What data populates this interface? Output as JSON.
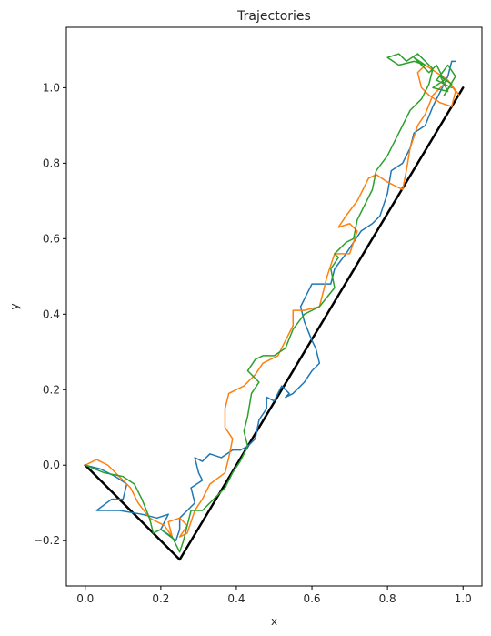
{
  "chart_data": {
    "type": "line",
    "title": "Trajectories",
    "xlabel": "x",
    "ylabel": "y",
    "xlim": [
      -0.05,
      1.05
    ],
    "ylim": [
      -0.32,
      1.16
    ],
    "xticks": [
      0.0,
      0.2,
      0.4,
      0.6,
      0.8,
      1.0
    ],
    "yticks": [
      -0.2,
      0.0,
      0.2,
      0.4,
      0.6,
      0.8,
      1.0
    ],
    "xtick_labels": [
      "0.0",
      "0.2",
      "0.4",
      "0.6",
      "0.8",
      "1.0"
    ],
    "ytick_labels": [
      "−0.2",
      "0.0",
      "0.2",
      "0.4",
      "0.6",
      "0.8",
      "1.0"
    ],
    "grid": false,
    "series": [
      {
        "color": "#000000",
        "width": 2.5,
        "points": [
          [
            0.0,
            0.0
          ],
          [
            0.25,
            -0.25
          ],
          [
            1.0,
            1.0
          ]
        ]
      },
      {
        "color": "#1f77b4",
        "width": 1.5,
        "points": [
          [
            0.0,
            0.0
          ],
          [
            0.04,
            -0.01
          ],
          [
            0.08,
            -0.03
          ],
          [
            0.11,
            -0.05
          ],
          [
            0.1,
            -0.09
          ],
          [
            0.07,
            -0.09
          ],
          [
            0.03,
            -0.12
          ],
          [
            0.09,
            -0.12
          ],
          [
            0.15,
            -0.13
          ],
          [
            0.19,
            -0.14
          ],
          [
            0.22,
            -0.13
          ],
          [
            0.2,
            -0.17
          ],
          [
            0.24,
            -0.2
          ],
          [
            0.25,
            -0.17
          ],
          [
            0.25,
            -0.14
          ],
          [
            0.28,
            -0.11
          ],
          [
            0.29,
            -0.1
          ],
          [
            0.28,
            -0.06
          ],
          [
            0.31,
            -0.04
          ],
          [
            0.3,
            -0.02
          ],
          [
            0.29,
            0.02
          ],
          [
            0.31,
            0.01
          ],
          [
            0.33,
            0.03
          ],
          [
            0.36,
            0.02
          ],
          [
            0.39,
            0.04
          ],
          [
            0.41,
            0.04
          ],
          [
            0.43,
            0.05
          ],
          [
            0.45,
            0.07
          ],
          [
            0.46,
            0.12
          ],
          [
            0.48,
            0.15
          ],
          [
            0.48,
            0.18
          ],
          [
            0.5,
            0.17
          ],
          [
            0.52,
            0.21
          ],
          [
            0.54,
            0.19
          ],
          [
            0.53,
            0.18
          ],
          [
            0.55,
            0.19
          ],
          [
            0.58,
            0.22
          ],
          [
            0.6,
            0.25
          ],
          [
            0.62,
            0.27
          ],
          [
            0.61,
            0.31
          ],
          [
            0.6,
            0.33
          ],
          [
            0.58,
            0.38
          ],
          [
            0.57,
            0.42
          ],
          [
            0.59,
            0.46
          ],
          [
            0.6,
            0.48
          ],
          [
            0.65,
            0.48
          ],
          [
            0.66,
            0.52
          ],
          [
            0.69,
            0.56
          ],
          [
            0.71,
            0.59
          ],
          [
            0.73,
            0.62
          ],
          [
            0.76,
            0.64
          ],
          [
            0.78,
            0.66
          ],
          [
            0.8,
            0.72
          ],
          [
            0.81,
            0.78
          ],
          [
            0.84,
            0.8
          ],
          [
            0.86,
            0.84
          ],
          [
            0.87,
            0.88
          ],
          [
            0.9,
            0.9
          ],
          [
            0.92,
            0.95
          ],
          [
            0.94,
            0.99
          ],
          [
            0.96,
            1.03
          ],
          [
            0.97,
            1.07
          ],
          [
            0.98,
            1.07
          ]
        ]
      },
      {
        "color": "#ff7f0e",
        "width": 1.5,
        "points": [
          [
            0.0,
            0.0
          ],
          [
            0.03,
            0.015
          ],
          [
            0.06,
            0.0
          ],
          [
            0.09,
            -0.03
          ],
          [
            0.12,
            -0.06
          ],
          [
            0.14,
            -0.1
          ],
          [
            0.17,
            -0.14
          ],
          [
            0.21,
            -0.16
          ],
          [
            0.23,
            -0.19
          ],
          [
            0.22,
            -0.15
          ],
          [
            0.25,
            -0.14
          ],
          [
            0.27,
            -0.16
          ],
          [
            0.25,
            -0.19
          ],
          [
            0.27,
            -0.18
          ],
          [
            0.29,
            -0.12
          ],
          [
            0.31,
            -0.09
          ],
          [
            0.33,
            -0.05
          ],
          [
            0.37,
            -0.02
          ],
          [
            0.38,
            0.02
          ],
          [
            0.39,
            0.07
          ],
          [
            0.37,
            0.1
          ],
          [
            0.37,
            0.15
          ],
          [
            0.38,
            0.19
          ],
          [
            0.42,
            0.21
          ],
          [
            0.45,
            0.24
          ],
          [
            0.47,
            0.27
          ],
          [
            0.51,
            0.29
          ],
          [
            0.53,
            0.33
          ],
          [
            0.55,
            0.37
          ],
          [
            0.55,
            0.41
          ],
          [
            0.58,
            0.41
          ],
          [
            0.62,
            0.42
          ],
          [
            0.63,
            0.46
          ],
          [
            0.64,
            0.5
          ],
          [
            0.66,
            0.56
          ],
          [
            0.7,
            0.56
          ],
          [
            0.72,
            0.62
          ],
          [
            0.7,
            0.64
          ],
          [
            0.67,
            0.63
          ],
          [
            0.69,
            0.66
          ],
          [
            0.72,
            0.7
          ],
          [
            0.75,
            0.76
          ],
          [
            0.77,
            0.77
          ],
          [
            0.8,
            0.75
          ],
          [
            0.84,
            0.73
          ],
          [
            0.85,
            0.78
          ],
          [
            0.86,
            0.84
          ],
          [
            0.88,
            0.9
          ],
          [
            0.9,
            0.93
          ],
          [
            0.92,
            0.98
          ],
          [
            0.96,
            1.02
          ],
          [
            0.98,
            0.99
          ],
          [
            0.97,
            0.95
          ],
          [
            0.94,
            0.96
          ],
          [
            0.91,
            0.98
          ],
          [
            0.89,
            1.0
          ],
          [
            0.88,
            1.04
          ],
          [
            0.9,
            1.06
          ],
          [
            0.93,
            1.04
          ],
          [
            0.96,
            1.02
          ],
          [
            0.99,
            0.98
          ]
        ]
      },
      {
        "color": "#2ca02c",
        "width": 1.5,
        "points": [
          [
            0.0,
            0.0
          ],
          [
            0.05,
            -0.02
          ],
          [
            0.1,
            -0.03
          ],
          [
            0.13,
            -0.05
          ],
          [
            0.15,
            -0.09
          ],
          [
            0.17,
            -0.14
          ],
          [
            0.18,
            -0.18
          ],
          [
            0.2,
            -0.17
          ],
          [
            0.23,
            -0.19
          ],
          [
            0.25,
            -0.23
          ],
          [
            0.26,
            -0.2
          ],
          [
            0.27,
            -0.16
          ],
          [
            0.28,
            -0.12
          ],
          [
            0.31,
            -0.12
          ],
          [
            0.35,
            -0.08
          ],
          [
            0.37,
            -0.06
          ],
          [
            0.39,
            -0.02
          ],
          [
            0.41,
            0.01
          ],
          [
            0.43,
            0.05
          ],
          [
            0.42,
            0.09
          ],
          [
            0.43,
            0.13
          ],
          [
            0.44,
            0.19
          ],
          [
            0.46,
            0.22
          ],
          [
            0.43,
            0.25
          ],
          [
            0.45,
            0.28
          ],
          [
            0.47,
            0.29
          ],
          [
            0.5,
            0.29
          ],
          [
            0.53,
            0.31
          ],
          [
            0.55,
            0.36
          ],
          [
            0.58,
            0.4
          ],
          [
            0.62,
            0.42
          ],
          [
            0.66,
            0.47
          ],
          [
            0.65,
            0.52
          ],
          [
            0.67,
            0.55
          ],
          [
            0.66,
            0.56
          ],
          [
            0.69,
            0.59
          ],
          [
            0.71,
            0.6
          ],
          [
            0.72,
            0.65
          ],
          [
            0.74,
            0.69
          ],
          [
            0.76,
            0.73
          ],
          [
            0.77,
            0.78
          ],
          [
            0.8,
            0.82
          ],
          [
            0.82,
            0.86
          ],
          [
            0.84,
            0.9
          ],
          [
            0.86,
            0.94
          ],
          [
            0.89,
            0.97
          ],
          [
            0.91,
            1.01
          ],
          [
            0.92,
            1.05
          ],
          [
            0.88,
            1.09
          ],
          [
            0.85,
            1.07
          ],
          [
            0.83,
            1.09
          ],
          [
            0.8,
            1.08
          ],
          [
            0.83,
            1.06
          ],
          [
            0.87,
            1.07
          ],
          [
            0.9,
            1.06
          ],
          [
            0.87,
            1.08
          ],
          [
            0.91,
            1.04
          ],
          [
            0.93,
            1.06
          ],
          [
            0.95,
            1.02
          ],
          [
            0.92,
            1.0
          ],
          [
            0.96,
            0.99
          ],
          [
            0.94,
            1.03
          ],
          [
            0.97,
            1.01
          ],
          [
            0.95,
            0.98
          ],
          [
            0.98,
            1.03
          ],
          [
            0.96,
            1.06
          ],
          [
            0.93,
            1.02
          ],
          [
            0.97,
            1.0
          ]
        ]
      }
    ]
  }
}
